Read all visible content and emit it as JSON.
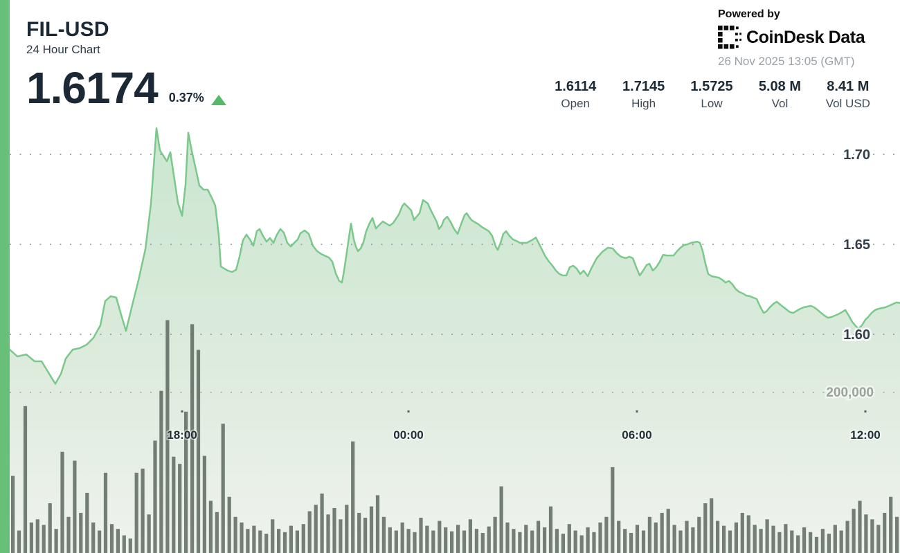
{
  "header": {
    "symbol": "FIL-USD",
    "subtitle": "24 Hour Chart",
    "price": "1.6174",
    "change_percent": "0.37%",
    "change_direction": "up",
    "powered_by": "Powered by",
    "brand": "CoinDesk Data",
    "timestamp": "26 Nov 2025 13:05 (GMT)"
  },
  "stats": [
    {
      "value": "1.6114",
      "label": "Open"
    },
    {
      "value": "1.7145",
      "label": "High"
    },
    {
      "value": "1.5725",
      "label": "Low"
    },
    {
      "value": "5.08 M",
      "label": "Vol"
    },
    {
      "value": "8.41 M",
      "label": "Vol USD"
    }
  ],
  "colors": {
    "accent_green": "#68bf77",
    "line_green": "#7bc88b",
    "fill_top": "#c9e6d0",
    "fill_mid": "#ddebdc",
    "fill_bottom": "#eff3ee",
    "volume_bar": "#5d695e",
    "up_triangle": "#55b968",
    "text_dark": "#1b2936",
    "grid_dot": "#8e959b",
    "volume_grid_dot": "#a9b2a9",
    "axis_gray": "#9aa49c",
    "timestamp_gray": "#9aa1a6"
  },
  "chart_data": {
    "type": "area",
    "title": "FIL-USD 24 Hour Chart",
    "last_price": 1.6174,
    "change_percent": 0.37,
    "open": 1.6114,
    "high": 1.7145,
    "low": 1.5725,
    "volume": "5.08 M",
    "volume_usd": "8.41 M",
    "legend": "none",
    "grid": "dotted-horizontal",
    "price_axis": {
      "side": "right",
      "ticks": [
        1.7,
        1.65,
        1.6
      ],
      "labels": [
        "1.70",
        "1.65",
        "1.60"
      ],
      "range": [
        1.57,
        1.72
      ]
    },
    "volume_axis": {
      "tick_value": 200000,
      "tick_label": "200,000",
      "bar_unit": "thousands"
    },
    "time_ticks": [
      "18:00",
      "00:00",
      "06:00",
      "12:00"
    ],
    "price_points": [
      [
        14,
        1.5915
      ],
      [
        25,
        1.5877
      ],
      [
        38,
        1.5888
      ],
      [
        50,
        1.585
      ],
      [
        60,
        1.585
      ],
      [
        68,
        1.58
      ],
      [
        75,
        1.5755
      ],
      [
        80,
        1.5725
      ],
      [
        88,
        1.578
      ],
      [
        95,
        1.5865
      ],
      [
        105,
        1.5915
      ],
      [
        115,
        1.5923
      ],
      [
        125,
        1.5942
      ],
      [
        135,
        1.598
      ],
      [
        145,
        1.605
      ],
      [
        152,
        1.6185
      ],
      [
        160,
        1.6212
      ],
      [
        168,
        1.6204
      ],
      [
        175,
        1.6108
      ],
      [
        182,
        1.6019
      ],
      [
        190,
        1.6146
      ],
      [
        200,
        1.63
      ],
      [
        210,
        1.6473
      ],
      [
        218,
        1.6723
      ],
      [
        226,
        1.7145
      ],
      [
        231,
        1.7022
      ],
      [
        236,
        1.6992
      ],
      [
        241,
        1.6962
      ],
      [
        246,
        1.7012
      ],
      [
        251,
        1.6885
      ],
      [
        257,
        1.6731
      ],
      [
        263,
        1.6658
      ],
      [
        268,
        1.6831
      ],
      [
        272,
        1.712
      ],
      [
        277,
        1.7019
      ],
      [
        283,
        1.6915
      ],
      [
        288,
        1.6827
      ],
      [
        294,
        1.6804
      ],
      [
        300,
        1.6804
      ],
      [
        306,
        1.6758
      ],
      [
        311,
        1.6715
      ],
      [
        316,
        1.655
      ],
      [
        319,
        1.6377
      ],
      [
        324,
        1.6365
      ],
      [
        329,
        1.6354
      ],
      [
        335,
        1.6346
      ],
      [
        341,
        1.6358
      ],
      [
        346,
        1.6431
      ],
      [
        351,
        1.6523
      ],
      [
        356,
        1.6554
      ],
      [
        361,
        1.6527
      ],
      [
        366,
        1.6492
      ],
      [
        371,
        1.6573
      ],
      [
        375,
        1.6585
      ],
      [
        380,
        1.6546
      ],
      [
        385,
        1.6515
      ],
      [
        390,
        1.6535
      ],
      [
        395,
        1.6508
      ],
      [
        400,
        1.6554
      ],
      [
        405,
        1.6585
      ],
      [
        410,
        1.6565
      ],
      [
        415,
        1.6508
      ],
      [
        420,
        1.6488
      ],
      [
        425,
        1.6508
      ],
      [
        430,
        1.6527
      ],
      [
        434,
        1.6562
      ],
      [
        440,
        1.6577
      ],
      [
        446,
        1.6558
      ],
      [
        452,
        1.6492
      ],
      [
        458,
        1.6462
      ],
      [
        464,
        1.6446
      ],
      [
        470,
        1.6435
      ],
      [
        475,
        1.6427
      ],
      [
        480,
        1.6404
      ],
      [
        485,
        1.6338
      ],
      [
        490,
        1.6296
      ],
      [
        494,
        1.6288
      ],
      [
        497,
        1.6354
      ],
      [
        500,
        1.6431
      ],
      [
        504,
        1.6538
      ],
      [
        507,
        1.6615
      ],
      [
        511,
        1.6527
      ],
      [
        514,
        1.6488
      ],
      [
        517,
        1.6462
      ],
      [
        521,
        1.6477
      ],
      [
        525,
        1.6512
      ],
      [
        529,
        1.6573
      ],
      [
        534,
        1.6619
      ],
      [
        538,
        1.6646
      ],
      [
        543,
        1.6588
      ],
      [
        548,
        1.6608
      ],
      [
        553,
        1.6627
      ],
      [
        558,
        1.6615
      ],
      [
        563,
        1.6604
      ],
      [
        568,
        1.6619
      ],
      [
        572,
        1.6642
      ],
      [
        576,
        1.6665
      ],
      [
        581,
        1.6712
      ],
      [
        584,
        1.6727
      ],
      [
        588,
        1.6712
      ],
      [
        591,
        1.67
      ],
      [
        594,
        1.6688
      ],
      [
        598,
        1.6635
      ],
      [
        601,
        1.665
      ],
      [
        606,
        1.6673
      ],
      [
        611,
        1.6746
      ],
      [
        614,
        1.6738
      ],
      [
        618,
        1.6727
      ],
      [
        621,
        1.67
      ],
      [
        626,
        1.6662
      ],
      [
        631,
        1.6623
      ],
      [
        634,
        1.6585
      ],
      [
        638,
        1.6604
      ],
      [
        641,
        1.6635
      ],
      [
        646,
        1.6654
      ],
      [
        651,
        1.6623
      ],
      [
        656,
        1.6585
      ],
      [
        661,
        1.6558
      ],
      [
        666,
        1.6612
      ],
      [
        671,
        1.6662
      ],
      [
        674,
        1.6673
      ],
      [
        678,
        1.665
      ],
      [
        681,
        1.6635
      ],
      [
        686,
        1.6623
      ],
      [
        691,
        1.6612
      ],
      [
        696,
        1.6596
      ],
      [
        701,
        1.6585
      ],
      [
        706,
        1.6573
      ],
      [
        711,
        1.6546
      ],
      [
        716,
        1.6488
      ],
      [
        719,
        1.6469
      ],
      [
        723,
        1.6508
      ],
      [
        727,
        1.6558
      ],
      [
        731,
        1.6573
      ],
      [
        736,
        1.6546
      ],
      [
        741,
        1.6527
      ],
      [
        746,
        1.6519
      ],
      [
        751,
        1.6508
      ],
      [
        761,
        1.6508
      ],
      [
        766,
        1.6519
      ],
      [
        770,
        1.6527
      ],
      [
        774,
        1.6538
      ],
      [
        778,
        1.6508
      ],
      [
        783,
        1.6469
      ],
      [
        788,
        1.6431
      ],
      [
        793,
        1.6404
      ],
      [
        798,
        1.6381
      ],
      [
        803,
        1.6354
      ],
      [
        808,
        1.6335
      ],
      [
        813,
        1.6327
      ],
      [
        818,
        1.6327
      ],
      [
        823,
        1.6373
      ],
      [
        828,
        1.6381
      ],
      [
        833,
        1.6365
      ],
      [
        838,
        1.6335
      ],
      [
        843,
        1.6354
      ],
      [
        849,
        1.6323
      ],
      [
        855,
        1.6373
      ],
      [
        862,
        1.6423
      ],
      [
        870,
        1.6458
      ],
      [
        878,
        1.6481
      ],
      [
        885,
        1.6477
      ],
      [
        891,
        1.645
      ],
      [
        897,
        1.6431
      ],
      [
        904,
        1.6423
      ],
      [
        909,
        1.6431
      ],
      [
        914,
        1.6423
      ],
      [
        919,
        1.6373
      ],
      [
        924,
        1.6327
      ],
      [
        929,
        1.6354
      ],
      [
        934,
        1.6385
      ],
      [
        938,
        1.6392
      ],
      [
        943,
        1.6354
      ],
      [
        948,
        1.6373
      ],
      [
        953,
        1.6404
      ],
      [
        958,
        1.6442
      ],
      [
        963,
        1.6438
      ],
      [
        973,
        1.6438
      ],
      [
        978,
        1.6462
      ],
      [
        983,
        1.6481
      ],
      [
        988,
        1.6496
      ],
      [
        993,
        1.65
      ],
      [
        998,
        1.6508
      ],
      [
        1003,
        1.6512
      ],
      [
        1007,
        1.6515
      ],
      [
        1011,
        1.6508
      ],
      [
        1015,
        1.6462
      ],
      [
        1019,
        1.6392
      ],
      [
        1023,
        1.6335
      ],
      [
        1028,
        1.6323
      ],
      [
        1033,
        1.6319
      ],
      [
        1038,
        1.6315
      ],
      [
        1043,
        1.6304
      ],
      [
        1048,
        1.6288
      ],
      [
        1053,
        1.6296
      ],
      [
        1058,
        1.6277
      ],
      [
        1063,
        1.625
      ],
      [
        1068,
        1.6235
      ],
      [
        1073,
        1.6227
      ],
      [
        1078,
        1.6215
      ],
      [
        1083,
        1.6212
      ],
      [
        1088,
        1.6204
      ],
      [
        1093,
        1.6196
      ],
      [
        1098,
        1.6154
      ],
      [
        1103,
        1.6119
      ],
      [
        1107,
        1.6127
      ],
      [
        1112,
        1.615
      ],
      [
        1117,
        1.6169
      ],
      [
        1122,
        1.6181
      ],
      [
        1127,
        1.6165
      ],
      [
        1132,
        1.615
      ],
      [
        1137,
        1.6135
      ],
      [
        1141,
        1.6123
      ],
      [
        1146,
        1.6119
      ],
      [
        1151,
        1.6131
      ],
      [
        1156,
        1.6142
      ],
      [
        1161,
        1.615
      ],
      [
        1166,
        1.6154
      ],
      [
        1171,
        1.6158
      ],
      [
        1176,
        1.615
      ],
      [
        1181,
        1.6135
      ],
      [
        1186,
        1.6119
      ],
      [
        1191,
        1.6104
      ],
      [
        1196,
        1.6092
      ],
      [
        1201,
        1.6096
      ],
      [
        1206,
        1.6104
      ],
      [
        1211,
        1.6112
      ],
      [
        1216,
        1.6123
      ],
      [
        1221,
        1.6135
      ],
      [
        1226,
        1.6104
      ],
      [
        1231,
        1.6069
      ],
      [
        1236,
        1.6046
      ],
      [
        1240,
        1.6031
      ],
      [
        1245,
        1.605
      ],
      [
        1250,
        1.6081
      ],
      [
        1254,
        1.6096
      ],
      [
        1259,
        1.6119
      ],
      [
        1264,
        1.6135
      ],
      [
        1269,
        1.6142
      ],
      [
        1274,
        1.6146
      ],
      [
        1279,
        1.615
      ],
      [
        1284,
        1.6158
      ],
      [
        1290,
        1.6169
      ],
      [
        1295,
        1.6177
      ],
      [
        1300,
        1.6174
      ]
    ],
    "volume_bars": [
      96,
      28,
      183,
      38,
      42,
      35,
      62,
      30,
      126,
      45,
      115,
      50,
      75,
      38,
      28,
      100,
      36,
      30,
      22,
      18,
      100,
      105,
      48,
      140,
      202,
      290,
      120,
      111,
      176,
      285,
      253,
      121,
      65,
      51,
      161,
      70,
      45,
      38,
      30,
      34,
      28,
      24,
      42,
      30,
      26,
      34,
      28,
      36,
      52,
      60,
      74,
      48,
      56,
      42,
      60,
      139,
      50,
      44,
      58,
      72,
      45,
      32,
      28,
      38,
      30,
      26,
      44,
      34,
      28,
      40,
      32,
      27,
      35,
      28,
      42,
      30,
      25,
      33,
      45,
      83,
      38,
      30,
      26,
      35,
      28,
      40,
      32,
      58,
      30,
      24,
      36,
      28,
      22,
      32,
      26,
      38,
      45,
      107,
      40,
      30,
      25,
      35,
      28,
      45,
      38,
      50,
      55,
      35,
      28,
      40,
      32,
      45,
      62,
      68,
      40,
      34,
      28,
      38,
      50,
      47,
      35,
      30,
      42,
      34,
      26,
      36,
      28,
      22,
      32,
      26,
      20,
      30,
      24,
      35,
      28,
      40,
      55,
      65,
      48,
      42,
      35,
      50,
      70,
      45
    ]
  }
}
